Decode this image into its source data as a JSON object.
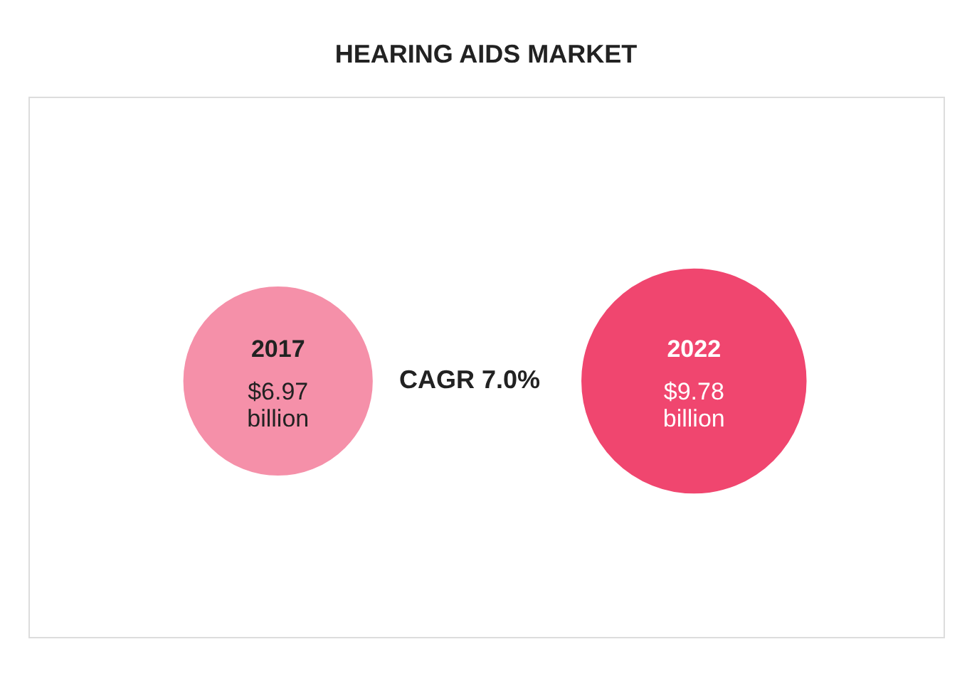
{
  "chart_data": {
    "type": "other",
    "title": "HEARING AIDS MARKET",
    "categories": [
      "2017",
      "2022"
    ],
    "values": [
      6.97,
      9.78
    ],
    "value_labels": [
      "$6.97 billion",
      "$9.78 billion"
    ],
    "colors": [
      "#f590a9",
      "#f0466f"
    ],
    "annotations": [
      "CAGR 7.0%"
    ]
  }
}
